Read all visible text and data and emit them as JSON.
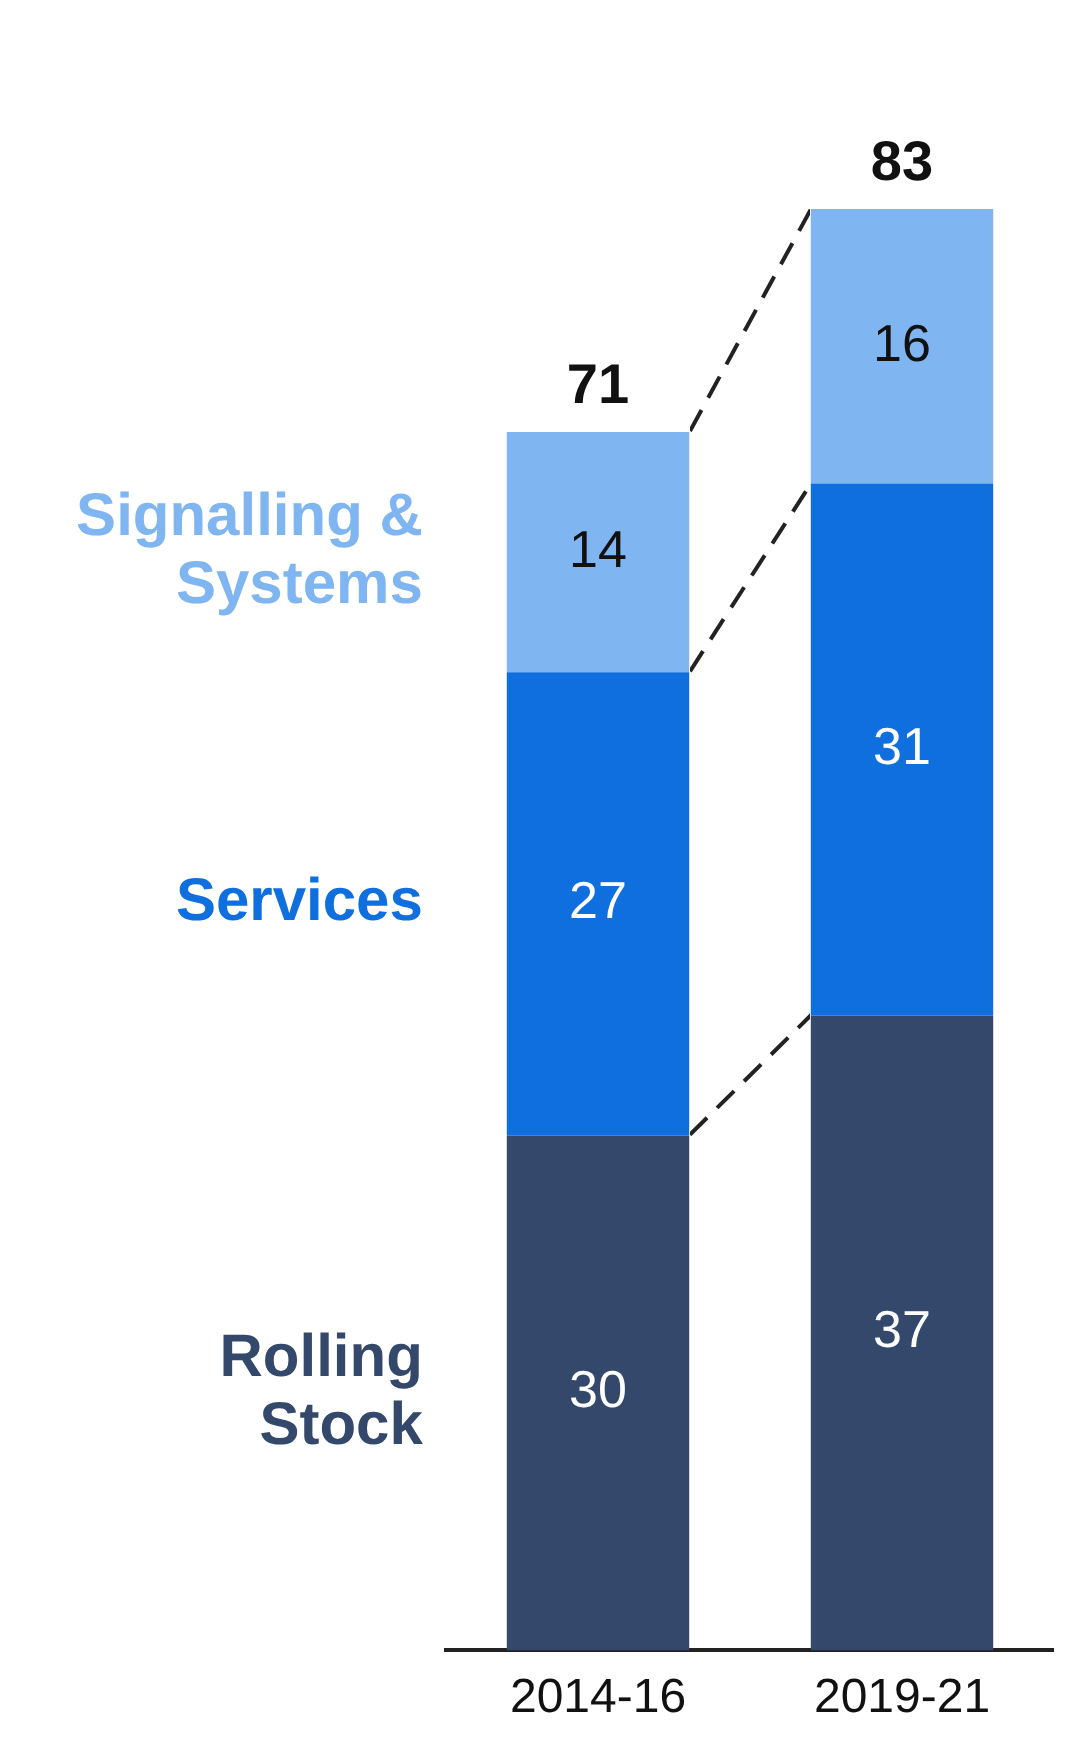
{
  "chart_data": {
    "type": "bar",
    "stacked": true,
    "categories": [
      "2014-16",
      "2019-21"
    ],
    "series": [
      {
        "name": "Rolling Stock",
        "color": "#34486b",
        "values": [
          30,
          37
        ]
      },
      {
        "name": "Services",
        "color": "#0f6fde",
        "values": [
          27,
          31
        ]
      },
      {
        "name": "Signalling & Systems",
        "color": "#7fb5f0",
        "values": [
          14,
          16
        ]
      }
    ],
    "data_labels": true,
    "totals": [
      "71",
      "83"
    ],
    "grid": false,
    "legend": false
  }
}
